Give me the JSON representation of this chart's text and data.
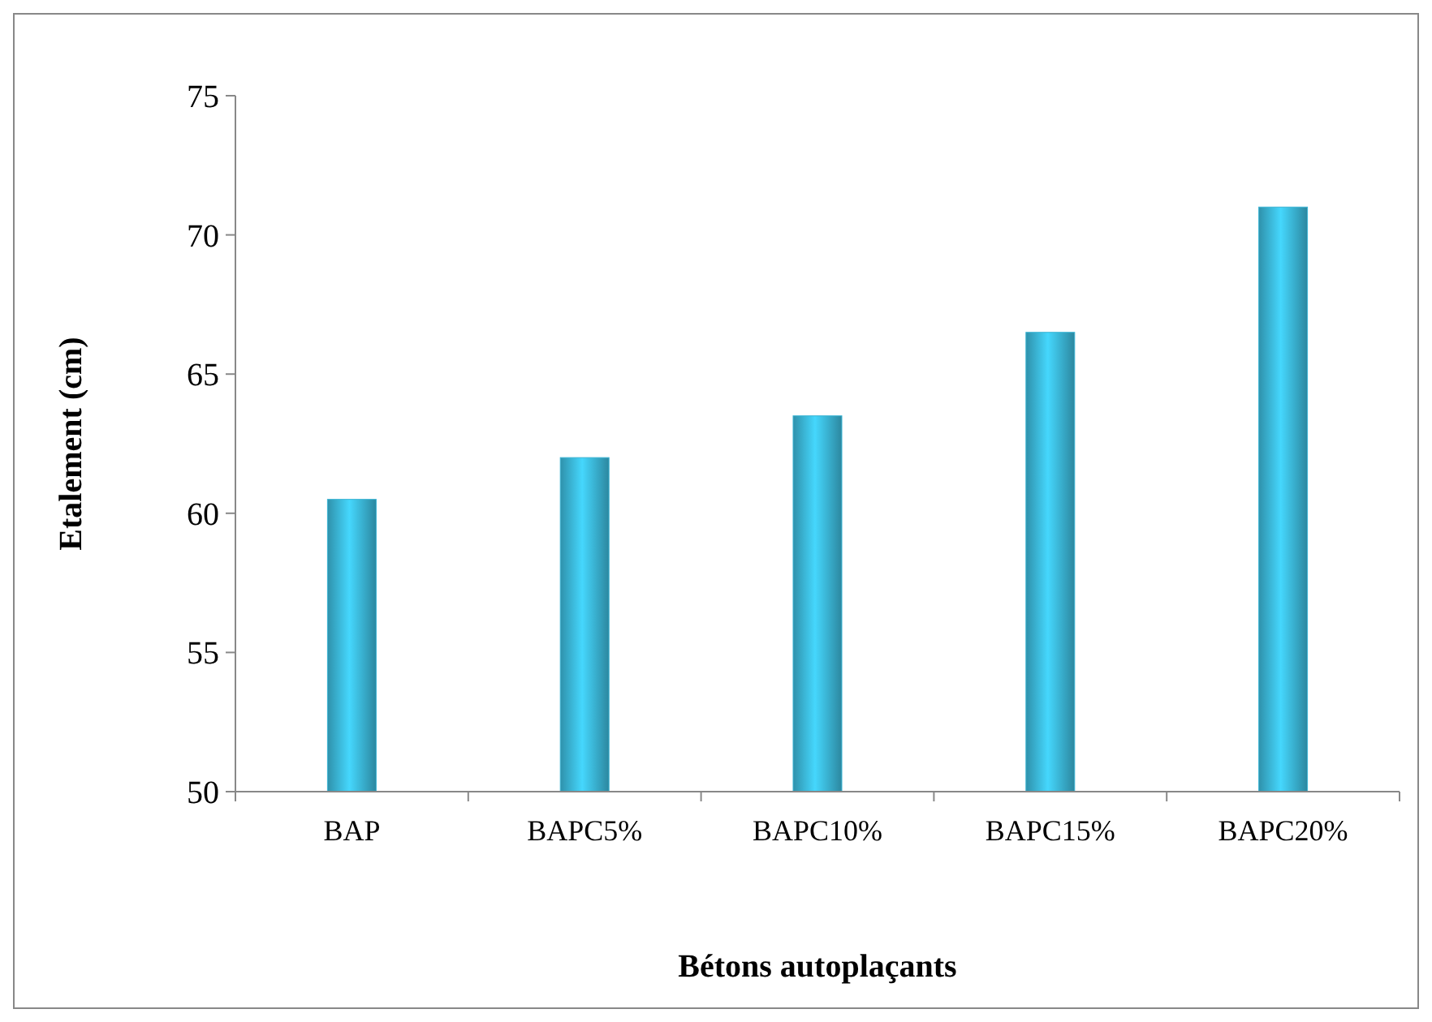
{
  "chart_data": {
    "type": "bar",
    "xlabel": "Bétons autoplaçants",
    "ylabel": "Etalement (cm)",
    "categories": [
      "BAP",
      "BAPC5%",
      "BAPC10%",
      "BAPC15%",
      "BAPC20%"
    ],
    "values": [
      60.5,
      62,
      63.5,
      66.5,
      71
    ],
    "color": "#3ab4d4",
    "ylim": [
      50,
      75
    ],
    "yticks": [
      50,
      55,
      60,
      65,
      70,
      75
    ],
    "grid": false
  }
}
